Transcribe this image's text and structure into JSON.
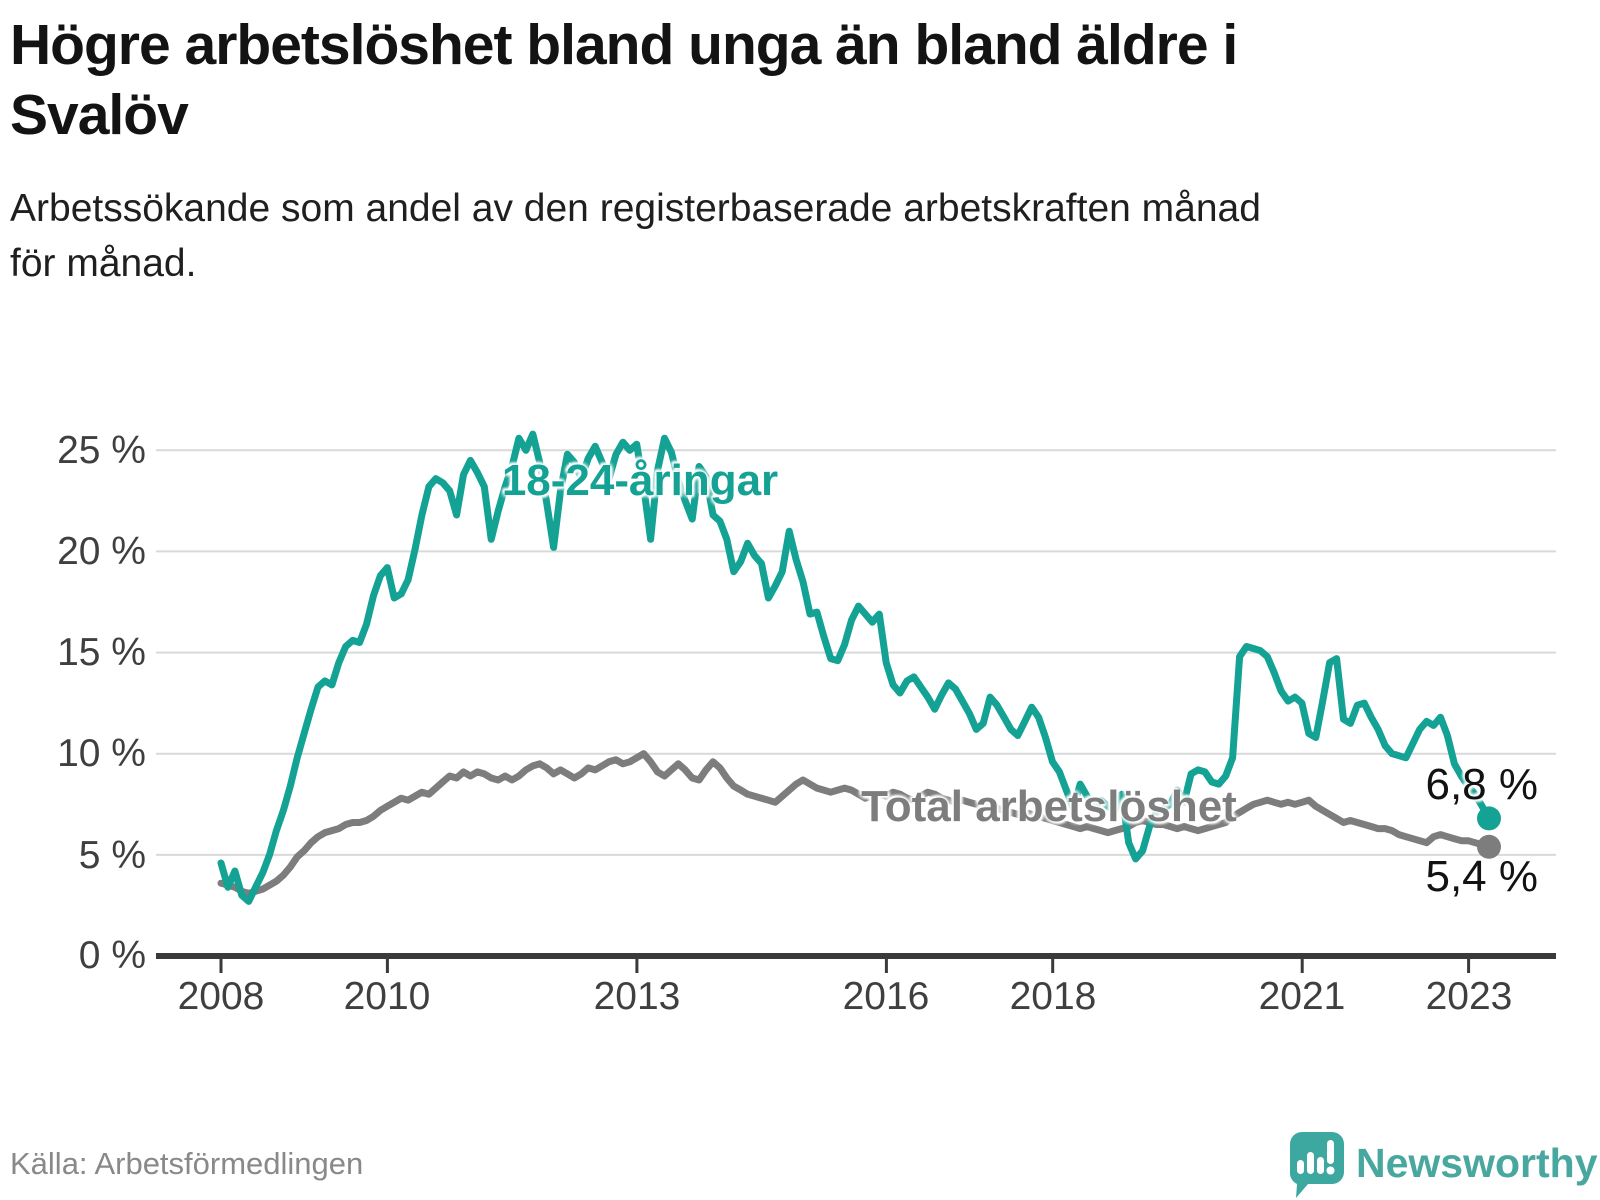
{
  "header": {
    "title": "Högre arbetslöshet bland unga än bland äldre i Svalöv",
    "title_lines": [
      "Högre arbetslöshet bland unga än bland äldre i",
      "Svalöv"
    ],
    "subtitle": "Arbetssökande som andel av den registerbaserade arbetskraften månad för månad.",
    "subtitle_lines": [
      "Arbetssökande som andel av den registerbaserade arbetskraften månad",
      "för månad."
    ]
  },
  "footer": {
    "source": "Källa: Arbetsförmedlingen",
    "brand": "Newsworthy",
    "brand_color": "#48a79e"
  },
  "chart_data": {
    "type": "line",
    "unit": "%",
    "frequency": "monthly",
    "x_start": "2008-01",
    "x_end": "2023-04",
    "ylim": [
      0,
      26.5
    ],
    "grid": true,
    "y_ticks": [
      {
        "value": 25,
        "label": "25 %"
      },
      {
        "value": 20,
        "label": "20 %"
      },
      {
        "value": 15,
        "label": "15 %"
      },
      {
        "value": 10,
        "label": "10 %"
      },
      {
        "value": 5,
        "label": "5 %"
      },
      {
        "value": 0,
        "label": "0 %"
      }
    ],
    "x_ticks": [
      {
        "label": "2008"
      },
      {
        "label": "2010"
      },
      {
        "label": "2013"
      },
      {
        "label": "2016"
      },
      {
        "label": "2018"
      },
      {
        "label": "2021"
      },
      {
        "label": "2023"
      }
    ],
    "series": [
      {
        "id": "youth",
        "name": "18-24-åringar",
        "color": "#14a294",
        "end_label": "6,8 %",
        "end_value": 6.8,
        "values": [
          4.6,
          3.4,
          4.2,
          3.0,
          2.7,
          3.4,
          4.1,
          5.0,
          6.2,
          7.2,
          8.4,
          9.8,
          11.0,
          12.2,
          13.3,
          13.6,
          13.4,
          14.5,
          15.3,
          15.6,
          15.5,
          16.4,
          17.8,
          18.8,
          19.2,
          17.7,
          17.9,
          18.6,
          20.1,
          21.8,
          23.2,
          23.6,
          23.4,
          23.0,
          21.8,
          23.8,
          24.5,
          23.9,
          23.2,
          20.6,
          22.0,
          23.2,
          24.2,
          25.6,
          25.0,
          25.8,
          24.4,
          22.4,
          20.2,
          23.0,
          24.8,
          24.4,
          23.6,
          24.6,
          25.2,
          24.4,
          23.6,
          24.8,
          25.4,
          25.0,
          25.3,
          23.2,
          20.6,
          24.0,
          25.6,
          24.9,
          23.5,
          22.5,
          21.6,
          24.2,
          23.7,
          21.8,
          21.5,
          20.6,
          19.0,
          19.5,
          20.4,
          19.8,
          19.4,
          17.7,
          18.3,
          19.0,
          21.0,
          19.6,
          18.5,
          16.9,
          17.0,
          15.8,
          14.7,
          14.6,
          15.4,
          16.6,
          17.3,
          16.9,
          16.5,
          16.9,
          14.5,
          13.4,
          13.0,
          13.6,
          13.8,
          13.3,
          12.8,
          12.2,
          12.9,
          13.5,
          13.2,
          12.6,
          12.0,
          11.2,
          11.5,
          12.8,
          12.4,
          11.8,
          11.2,
          10.9,
          11.6,
          12.3,
          11.8,
          10.8,
          9.6,
          9.1,
          8.2,
          7.3,
          8.5,
          7.9,
          7.3,
          7.7,
          7.4,
          7.2,
          8.0,
          5.6,
          4.8,
          5.2,
          6.4,
          7.1,
          7.3,
          7.5,
          8.2,
          7.6,
          9.0,
          9.2,
          9.1,
          8.6,
          8.5,
          8.9,
          9.8,
          14.8,
          15.3,
          15.2,
          15.1,
          14.8,
          14.0,
          13.1,
          12.6,
          12.8,
          12.5,
          11.0,
          10.8,
          12.6,
          14.5,
          14.7,
          11.7,
          11.5,
          12.4,
          12.5,
          11.8,
          11.2,
          10.4,
          10.0,
          9.9,
          9.8,
          10.5,
          11.2,
          11.6,
          11.4,
          11.8,
          10.9,
          9.5,
          8.9,
          8.4,
          8.0,
          7.4,
          6.8
        ]
      },
      {
        "id": "total",
        "name": "Total arbetslöshet",
        "color": "#7d7d7d",
        "end_label": "5,4 %",
        "end_value": 5.4,
        "values": [
          3.6,
          3.5,
          3.4,
          3.2,
          3.1,
          3.2,
          3.3,
          3.5,
          3.7,
          4.0,
          4.4,
          4.9,
          5.2,
          5.6,
          5.9,
          6.1,
          6.2,
          6.3,
          6.5,
          6.6,
          6.6,
          6.7,
          6.9,
          7.2,
          7.4,
          7.6,
          7.8,
          7.7,
          7.9,
          8.1,
          8.0,
          8.3,
          8.6,
          8.9,
          8.8,
          9.1,
          8.9,
          9.1,
          9.0,
          8.8,
          8.7,
          8.9,
          8.7,
          8.9,
          9.2,
          9.4,
          9.5,
          9.3,
          9.0,
          9.2,
          9.0,
          8.8,
          9.0,
          9.3,
          9.2,
          9.4,
          9.6,
          9.7,
          9.5,
          9.6,
          9.8,
          10.0,
          9.6,
          9.1,
          8.9,
          9.2,
          9.5,
          9.2,
          8.8,
          8.7,
          9.2,
          9.6,
          9.3,
          8.8,
          8.4,
          8.2,
          8.0,
          7.9,
          7.8,
          7.7,
          7.6,
          7.9,
          8.2,
          8.5,
          8.7,
          8.5,
          8.3,
          8.2,
          8.1,
          8.2,
          8.3,
          8.2,
          8.0,
          7.8,
          7.9,
          8.0,
          7.9,
          8.1,
          8.0,
          7.8,
          7.7,
          7.9,
          8.1,
          8.0,
          7.8,
          7.7,
          7.6,
          7.7,
          7.6,
          7.5,
          7.4,
          7.5,
          7.3,
          7.2,
          7.1,
          7.0,
          7.1,
          7.0,
          6.9,
          6.8,
          6.7,
          6.6,
          6.5,
          6.4,
          6.3,
          6.4,
          6.3,
          6.2,
          6.1,
          6.2,
          6.3,
          6.4,
          6.6,
          6.7,
          6.6,
          6.5,
          6.5,
          6.4,
          6.3,
          6.4,
          6.3,
          6.2,
          6.3,
          6.4,
          6.5,
          6.6,
          6.9,
          7.1,
          7.3,
          7.5,
          7.6,
          7.7,
          7.6,
          7.5,
          7.6,
          7.5,
          7.6,
          7.7,
          7.4,
          7.2,
          7.0,
          6.8,
          6.6,
          6.7,
          6.6,
          6.5,
          6.4,
          6.3,
          6.3,
          6.2,
          6.0,
          5.9,
          5.8,
          5.7,
          5.6,
          5.9,
          6.0,
          5.9,
          5.8,
          5.7,
          5.7,
          5.6,
          5.5,
          5.4
        ]
      }
    ]
  }
}
